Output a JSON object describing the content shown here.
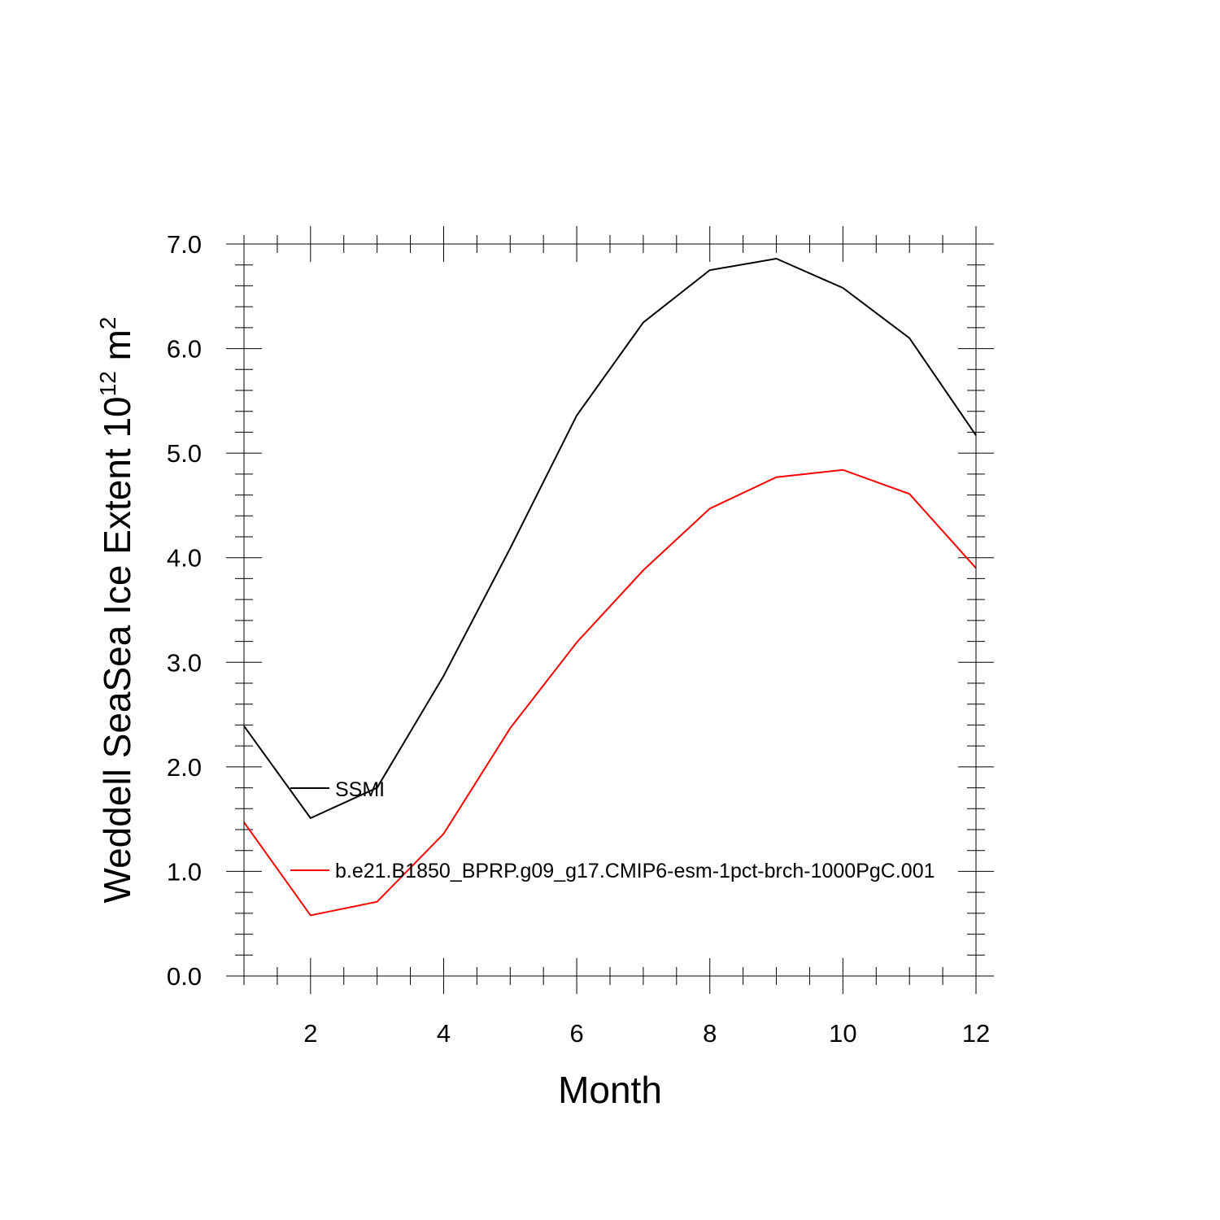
{
  "chart_data": {
    "type": "line",
    "title": "",
    "xlabel": "Month",
    "ylabel": "Weddell SeaSea Ice Extent 10",
    "ylabel_exponent": "12",
    "ylabel_unit": " m",
    "ylabel_unit_exponent": "2",
    "xlim": [
      1,
      12
    ],
    "ylim": [
      0,
      7
    ],
    "x_ticks": [
      2,
      4,
      6,
      8,
      10,
      12
    ],
    "x_tick_labels": [
      "2",
      "4",
      "6",
      "8",
      "10",
      "12"
    ],
    "y_ticks": [
      0,
      1,
      2,
      3,
      4,
      5,
      6,
      7
    ],
    "y_tick_labels": [
      "0.0",
      "1.0",
      "2.0",
      "3.0",
      "4.0",
      "5.0",
      "6.0",
      "7.0"
    ],
    "x": [
      1,
      2,
      3,
      4,
      5,
      6,
      7,
      8,
      9,
      10,
      11,
      12
    ],
    "grid": false,
    "legend_position": "inside-left",
    "series": [
      {
        "name": "SSMI",
        "color": "#000000",
        "values": [
          2.39,
          1.51,
          1.8,
          2.87,
          4.09,
          5.36,
          6.25,
          6.75,
          6.86,
          6.58,
          6.1,
          5.17
        ]
      },
      {
        "name": "b.e21.B1850_BPRP.g09_g17.CMIP6-esm-1pct-brch-1000PgC.001",
        "color": "#ff0000",
        "values": [
          1.47,
          0.58,
          0.71,
          1.36,
          2.37,
          3.19,
          3.88,
          4.47,
          4.77,
          4.84,
          4.61,
          3.9
        ]
      }
    ]
  }
}
